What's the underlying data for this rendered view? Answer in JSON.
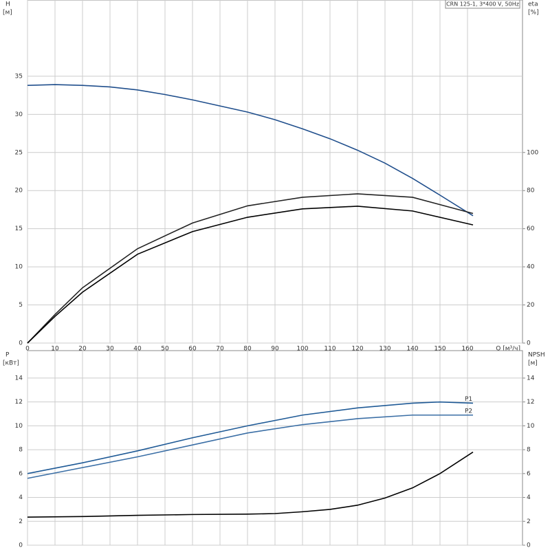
{
  "chart_data": [
    {
      "type": "line",
      "title": "CRN 125-1, 3*400 V, 50Hz",
      "ylabel": "H",
      "yunit": "[м]",
      "y2label": "eta",
      "y2unit": "[%]",
      "xlabel": "Q [м³/ч]",
      "xlim": [
        0,
        180
      ],
      "xticks": [
        0,
        10,
        20,
        30,
        40,
        50,
        60,
        70,
        80,
        90,
        100,
        110,
        120,
        130,
        140,
        150,
        160
      ],
      "ylim": [
        0,
        45
      ],
      "yticks": [
        0,
        5,
        10,
        15,
        20,
        25,
        30,
        35
      ],
      "y2lim": [
        0,
        180
      ],
      "y2ticks": [
        0,
        20,
        40,
        60,
        80,
        100
      ],
      "grid": true,
      "xtick_labels": true,
      "series": [
        {
          "color": "#1f4e8c",
          "x": [
            0,
            10,
            20,
            30,
            40,
            50,
            60,
            70,
            80,
            90,
            100,
            110,
            120,
            130,
            140,
            150,
            162
          ],
          "values": [
            33.8,
            33.9,
            33.8,
            33.6,
            33.2,
            32.6,
            31.9,
            31.1,
            30.3,
            29.3,
            28.1,
            26.8,
            25.3,
            23.6,
            21.6,
            19.4,
            16.7
          ]
        },
        {
          "color": "#222222",
          "axis": "y2",
          "x": [
            0,
            10,
            20,
            40,
            60,
            80,
            100,
            120,
            140,
            162
          ],
          "values": [
            0,
            15,
            29,
            49.5,
            63,
            72,
            76.5,
            78.3,
            76.5,
            68
          ]
        },
        {
          "color": "#000000",
          "axis": "y2",
          "x": [
            0,
            10,
            20,
            40,
            60,
            80,
            100,
            120,
            140,
            162
          ],
          "values": [
            0,
            14,
            26.7,
            46.6,
            58.5,
            66,
            70.4,
            71.8,
            69.3,
            62
          ]
        }
      ]
    },
    {
      "type": "line",
      "ylabel": "P",
      "yunit": "[кВт]",
      "y2label": "NPSH",
      "y2unit": "[м]",
      "xlim": [
        0,
        180
      ],
      "xticks": [
        0,
        10,
        20,
        30,
        40,
        50,
        60,
        70,
        80,
        90,
        100,
        110,
        120,
        130,
        140,
        150,
        160
      ],
      "ylim": [
        0,
        16.3
      ],
      "yticks": [
        0,
        2,
        4,
        6,
        8,
        10,
        12,
        14
      ],
      "y2lim": [
        0,
        16.3
      ],
      "y2ticks": [
        0,
        2,
        4,
        6,
        8,
        10,
        12,
        14
      ],
      "grid": true,
      "xtick_labels": false,
      "series": [
        {
          "name": "P1",
          "color": "#1f5a96",
          "x": [
            0,
            20,
            40,
            60,
            80,
            100,
            120,
            140,
            150,
            162
          ],
          "values": [
            6.0,
            6.9,
            7.9,
            9.0,
            10.0,
            10.9,
            11.5,
            11.9,
            12.0,
            11.9
          ]
        },
        {
          "name": "P2",
          "color": "#3a6ea5",
          "x": [
            0,
            20,
            40,
            60,
            80,
            100,
            120,
            140,
            162
          ],
          "values": [
            5.6,
            6.5,
            7.4,
            8.4,
            9.4,
            10.1,
            10.6,
            10.9,
            10.9
          ]
        },
        {
          "color": "#000000",
          "axis": "y2",
          "x": [
            0,
            20,
            40,
            60,
            80,
            90,
            100,
            110,
            120,
            130,
            140,
            150,
            162
          ],
          "values": [
            2.35,
            2.4,
            2.5,
            2.57,
            2.6,
            2.65,
            2.8,
            3.0,
            3.35,
            3.95,
            4.8,
            6.0,
            7.8
          ]
        }
      ]
    }
  ]
}
